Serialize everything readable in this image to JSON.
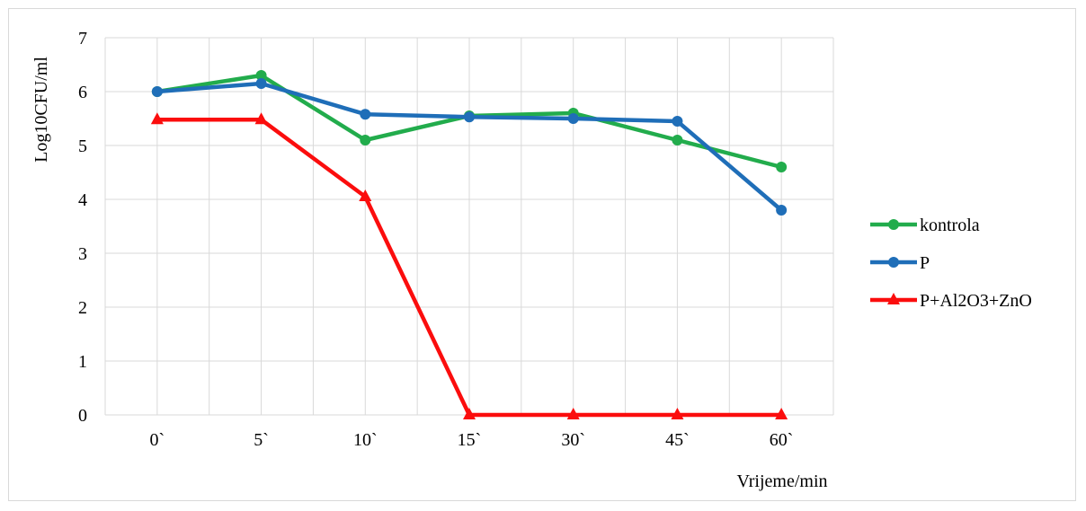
{
  "chart_data": {
    "type": "line",
    "title": "",
    "xlabel": "Vrijeme/min",
    "ylabel": "Log10CFU/ml",
    "categories": [
      "0`",
      "5`",
      "10`",
      "15`",
      "30`",
      "45`",
      "60`"
    ],
    "ylim": [
      0,
      7
    ],
    "yticks": [
      "0",
      "1",
      "2",
      "3",
      "4",
      "5",
      "6",
      "7"
    ],
    "grid": true,
    "legend_position": "right",
    "series": [
      {
        "name": "kontrola",
        "values": [
          6.0,
          6.3,
          5.1,
          5.55,
          5.6,
          5.1,
          4.6
        ],
        "color": "#22ac4c",
        "marker": "circle"
      },
      {
        "name": "P",
        "values": [
          6.0,
          6.15,
          5.58,
          5.53,
          5.5,
          5.45,
          3.8
        ],
        "color": "#1f6eb8",
        "marker": "circle"
      },
      {
        "name": "P+Al2O3+ZnO",
        "values": [
          5.48,
          5.48,
          4.05,
          0,
          0,
          0,
          0
        ],
        "color": "#fb0d0d",
        "marker": "triangle"
      }
    ]
  }
}
